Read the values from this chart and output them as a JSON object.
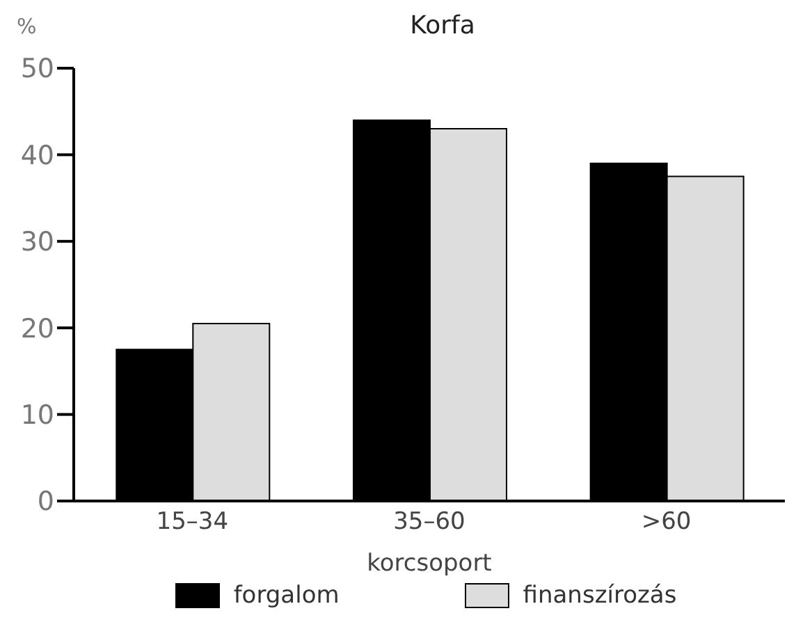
{
  "chart_data": {
    "type": "bar",
    "title": "Korfa",
    "ylabel": "%",
    "xlabel": "korcsoport",
    "categories": [
      "15–34",
      "35–60",
      ">60"
    ],
    "series": [
      {
        "name": "forgalom",
        "color": "#000000",
        "values": [
          17.5,
          44,
          39
        ]
      },
      {
        "name": "finanszírozás",
        "color": "#dddddd",
        "values": [
          20.5,
          43,
          37.5
        ]
      }
    ],
    "ylim": [
      0,
      50
    ],
    "yticks": [
      0,
      10,
      20,
      30,
      40,
      50
    ],
    "grid": false,
    "legend": "bottom"
  }
}
